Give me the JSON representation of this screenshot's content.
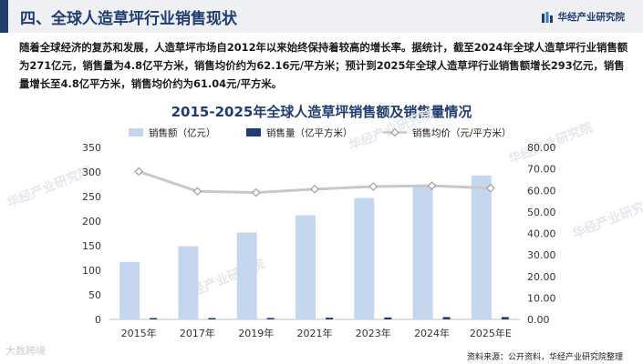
{
  "header": {
    "title": "四、全球人造草坪行业销售现状",
    "brand": "华经产业研究院"
  },
  "intro": "随着全球经济的复苏和发展，人造草坪市场自2012年以来始终保持着较高的增长率。据统计，截至2024年全球人造草坪行业销售额为271亿元，销售量为4.8亿平方米，销售均价约为62.16元/平方米；预计到2025年全球人造草坪行业销售额增长293亿元，销售量增长至4.8亿平方米，销售均价约为61.04元/平方米。",
  "source": "资料来源：公开资料，华经产业研究院整理",
  "watermark_bottom": "大数跨境",
  "watermark_text": "华经产业研究院",
  "colors": {
    "sales_bar": "#c5d7ee",
    "volume_bar": "#1f3d6e",
    "price_line": "#c9c9c9",
    "price_marker_fill": "#ffffff",
    "price_marker_stroke": "#a0a0a0",
    "title": "#1f3d6e"
  },
  "chart_data": {
    "type": "bar+line",
    "title": "2015-2025年全球人造草坪销售额及销售量情况",
    "categories": [
      "2015年",
      "2017年",
      "2019年",
      "2021年",
      "2023年",
      "2024年",
      "2025年E"
    ],
    "series": [
      {
        "name": "销售额（亿元）",
        "type": "bar",
        "axis": "left",
        "values": [
          117,
          149,
          177,
          212,
          247,
          271,
          293
        ]
      },
      {
        "name": "销售量（亿平方米）",
        "type": "bar",
        "axis": "left",
        "values": [
          1.7,
          2.5,
          3.0,
          3.5,
          4.0,
          4.8,
          4.8
        ]
      },
      {
        "name": "销售均价（元/平方米）",
        "type": "line",
        "axis": "right",
        "values": [
          68.8,
          59.6,
          59.0,
          60.6,
          61.8,
          62.16,
          61.04
        ]
      }
    ],
    "y_left": {
      "min": 0,
      "max": 350,
      "ticks": [
        0,
        50,
        100,
        150,
        200,
        250,
        300,
        350
      ]
    },
    "y_right": {
      "min": 0,
      "max": 80,
      "ticks": [
        "0.00",
        "10.00",
        "20.00",
        "30.00",
        "40.00",
        "50.00",
        "60.00",
        "70.00",
        "80.00"
      ]
    },
    "legend": "top-center",
    "grid": false
  }
}
